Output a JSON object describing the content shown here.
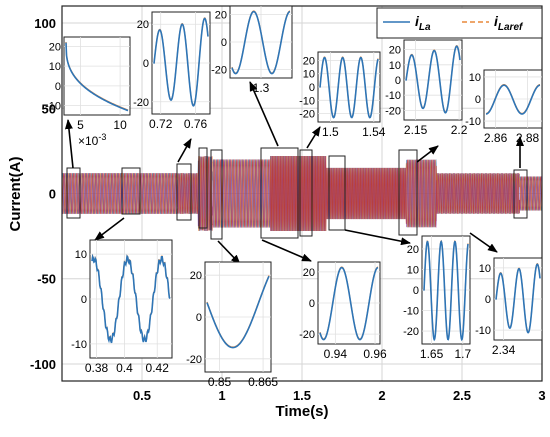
{
  "chart_data": {
    "type": "line",
    "title": "",
    "xlabel": "Time(s)",
    "ylabel": "Current(A)",
    "xlim": [
      0,
      3
    ],
    "ylim": [
      -110,
      110
    ],
    "xticks": [
      "0.5",
      "1",
      "1.5",
      "2",
      "2.5",
      "3"
    ],
    "yticks": [
      "100",
      "50",
      "0",
      "-50",
      "-100"
    ],
    "grid": true,
    "legend_position": "top-right",
    "series": [
      {
        "name": "iLa",
        "label_main": "i",
        "label_sub": "La",
        "color": "#2E75B6",
        "style": "solid"
      },
      {
        "name": "iLaref",
        "label_main": "i",
        "label_sub": "Laref",
        "color": "#E8883A",
        "style": "dashed"
      }
    ],
    "segments": [
      {
        "x_range": [
          0,
          0.38
        ],
        "amplitude": 12,
        "frequency_hz": 50
      },
      {
        "x_range": [
          0.38,
          0.72
        ],
        "amplitude": 12,
        "frequency_hz": 50
      },
      {
        "x_range": [
          0.72,
          0.85
        ],
        "amplitude": 12,
        "frequency_hz": 65
      },
      {
        "x_range": [
          0.85,
          0.94
        ],
        "amplitude": 22,
        "frequency_hz": 65
      },
      {
        "x_range": [
          0.94,
          1.3
        ],
        "amplitude": 20,
        "frequency_hz": 50
      },
      {
        "x_range": [
          1.3,
          1.65
        ],
        "amplitude": 22,
        "frequency_hz": 100
      },
      {
        "x_range": [
          1.65,
          2.15
        ],
        "amplitude": 15,
        "frequency_hz": 100
      },
      {
        "x_range": [
          2.15,
          2.34
        ],
        "amplitude": 20,
        "frequency_hz": 60
      },
      {
        "x_range": [
          2.34,
          2.86
        ],
        "amplitude": 12,
        "frequency_hz": 70
      },
      {
        "x_range": [
          2.86,
          3.0
        ],
        "amplitude": 10,
        "frequency_hz": 50
      }
    ],
    "insets": [
      {
        "id": "inset-0-0.01",
        "xticks": [
          "5",
          "10"
        ],
        "yticks": [
          "20",
          "10",
          "0",
          "-10"
        ],
        "exponent_label": "×10",
        "exponent_power": "-3"
      },
      {
        "id": "inset-0.72-0.76",
        "xticks": [
          "0.72",
          "0.76"
        ],
        "yticks": [
          "20",
          "0",
          "-20"
        ]
      },
      {
        "id": "inset-1.3",
        "xticks": [
          "1.3"
        ],
        "yticks": [
          "20",
          "0",
          "-20"
        ]
      },
      {
        "id": "inset-1.5-1.54",
        "xticks": [
          "1.5",
          "1.54"
        ],
        "yticks": [
          "20",
          "10",
          "0",
          "-10",
          "-20"
        ]
      },
      {
        "id": "inset-2.15-2.2",
        "xticks": [
          "2.15",
          "2.2"
        ],
        "yticks": [
          "20",
          "10",
          "0",
          "-10",
          "-20"
        ]
      },
      {
        "id": "inset-2.86-2.88",
        "xticks": [
          "2.86",
          "2.88"
        ],
        "yticks": [
          "10",
          "0",
          "-10"
        ]
      },
      {
        "id": "inset-0.38-0.42",
        "xticks": [
          "0.38",
          "0.4",
          "0.42"
        ],
        "yticks": [
          "10",
          "0",
          "-10"
        ]
      },
      {
        "id": "inset-0.85-0.865",
        "xticks": [
          "0.85",
          "0.865"
        ],
        "yticks": [
          "20",
          "0",
          "-20"
        ]
      },
      {
        "id": "inset-0.94-0.96",
        "xticks": [
          "0.94",
          "0.96"
        ],
        "yticks": [
          "20",
          "0",
          "-20"
        ]
      },
      {
        "id": "inset-1.65-1.7",
        "xticks": [
          "1.65",
          "1.7"
        ],
        "yticks": [
          "20",
          "10",
          "0",
          "-10",
          "-20"
        ]
      },
      {
        "id": "inset-2.34",
        "xticks": [
          "2.34"
        ],
        "yticks": [
          "10",
          "0",
          "-10"
        ]
      }
    ]
  }
}
